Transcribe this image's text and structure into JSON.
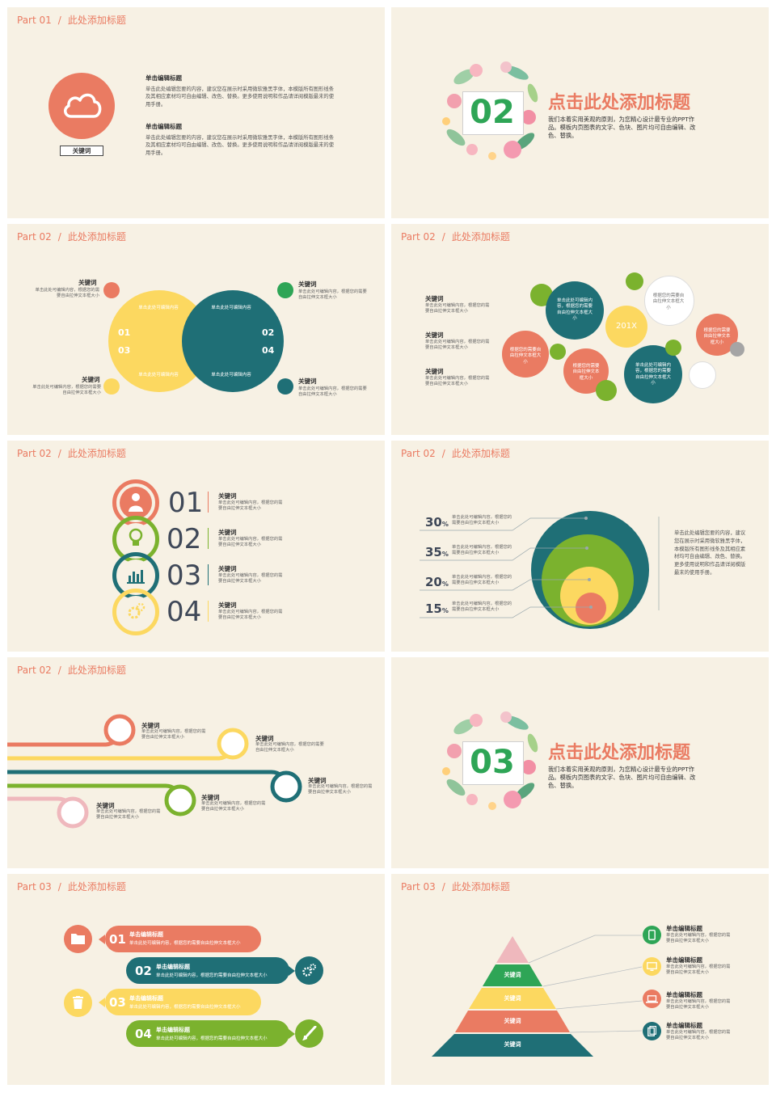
{
  "colors": {
    "orange": "#ea7b62",
    "yellow": "#fcd860",
    "teal": "#1f6f76",
    "green": "#7bb22e",
    "pink": "#efb8bd",
    "bg": "#f7f1e4",
    "mid_green": "#2ea556"
  },
  "s1": {
    "part": "Part 01",
    "sep": "/",
    "title": "此处添加标题",
    "icon": "cloud-icon",
    "label": "关键词",
    "blocks": [
      {
        "head": "单击编辑标题",
        "body": "单击此处编辑您要的内容，建议您在展示时采用微软雅黑字体，本模版所有图形线条及其相应素材均可自由编辑、改色、替换。更多使用说明和作品请详阅模版最末的使用手册。"
      },
      {
        "head": "单击编辑标题",
        "body": "单击此处编辑您要的内容，建议您在展示时采用微软雅黑字体，本模版所有图形线条及其相应素材均可自由编辑、改色、替换。更多使用说明和作品请详阅模版最末的使用手册。"
      }
    ]
  },
  "s2": {
    "number": "02",
    "title": "点击此处添加标题",
    "body": "我们本着实用美观的原则，为您精心设计最专业的PPT作品。模板内页图表的文字、色块、图片均可自由编辑、改色、替换。"
  },
  "s3": {
    "part": "Part 02",
    "sep": "/",
    "title": "此处添加标题",
    "kw": "关键词",
    "desc": "单击此处可编辑内容，根据您的需要自由拉伸文本框大小",
    "inner": "单击此处可编辑内容",
    "nums": [
      "01",
      "02",
      "03",
      "04"
    ]
  },
  "s4": {
    "part": "Part 02",
    "sep": "/",
    "title": "此处添加标题",
    "kw": "关键词",
    "desc": "单击此处可编辑内容，根据您的需要自由拉伸文本框大小",
    "circle_a": "单击此处可编辑内容，根据您的需要自由拉伸文本框大小",
    "circle_b": "根据您的需要自由拉伸文本框大小",
    "center": "201X"
  },
  "s5": {
    "part": "Part 02",
    "sep": "/",
    "title": "此处添加标题",
    "kw": "关键词",
    "desc": "单击此处可编辑内容，根据您的需要自由拉伸文本框大小",
    "nums": [
      "01",
      "02",
      "03",
      "04"
    ],
    "icons": [
      "person-icon",
      "lightbulb-icon",
      "bar-chart-icon",
      "gears-icon"
    ]
  },
  "s6": {
    "part": "Part 02",
    "sep": "/",
    "title": "此处添加标题",
    "desc": "单击此处可编辑内容，根据您的需要自由拉伸文本框大小",
    "rows": [
      {
        "v": "30",
        "u": "%"
      },
      {
        "v": "35",
        "u": "%"
      },
      {
        "v": "20",
        "u": "%"
      },
      {
        "v": "15",
        "u": "%"
      }
    ],
    "note": "单击此处编辑您要的内容，建议您在展示时采用微软雅黑字体，本模版所有图形线条及其相应素材均可自由编辑、改色、替换。更多使用说明和作品请详阅模版最末的使用手册。"
  },
  "s7": {
    "part": "Part 02",
    "sep": "/",
    "title": "此处添加标题",
    "kw": "关键词",
    "desc": "单击此处可编辑内容，根据您的需要自由拉伸文本框大小"
  },
  "s8": {
    "number": "03",
    "title": "点击此处添加标题",
    "body": "我们本着实用美观的原则，为您精心设计最专业的PPT作品。模板内页图表的文字、色块、图片均可自由编辑、改色、替换。"
  },
  "s9": {
    "part": "Part 03",
    "sep": "/",
    "title": "此处添加标题",
    "items": [
      {
        "num": "01",
        "head": "单击编辑标题",
        "body": "单击此处可编辑内容，根据您的需要自由拉伸文本框大小",
        "icon": "folder-icon"
      },
      {
        "num": "02",
        "head": "单击编辑标题",
        "body": "单击此处可编辑内容，根据您的需要自由拉伸文本框大小",
        "icon": "gear-icon"
      },
      {
        "num": "03",
        "head": "单击编辑标题",
        "body": "单击此处可编辑内容，根据您的需要自由拉伸文本框大小",
        "icon": "trash-icon"
      },
      {
        "num": "04",
        "head": "单击编辑标题",
        "body": "单击此处可编辑内容，根据您的需要自由拉伸文本框大小",
        "icon": "brush-icon"
      }
    ]
  },
  "s10": {
    "part": "Part 03",
    "sep": "/",
    "title": "此处添加标题",
    "layer_label": "关键词",
    "head": "单击编辑标题",
    "body": "单击此处可编辑内容，根据您的需要自由拉伸文本框大小",
    "icons": [
      "phone-icon",
      "monitor-icon",
      "laptop-icon",
      "tablet-icon"
    ]
  }
}
